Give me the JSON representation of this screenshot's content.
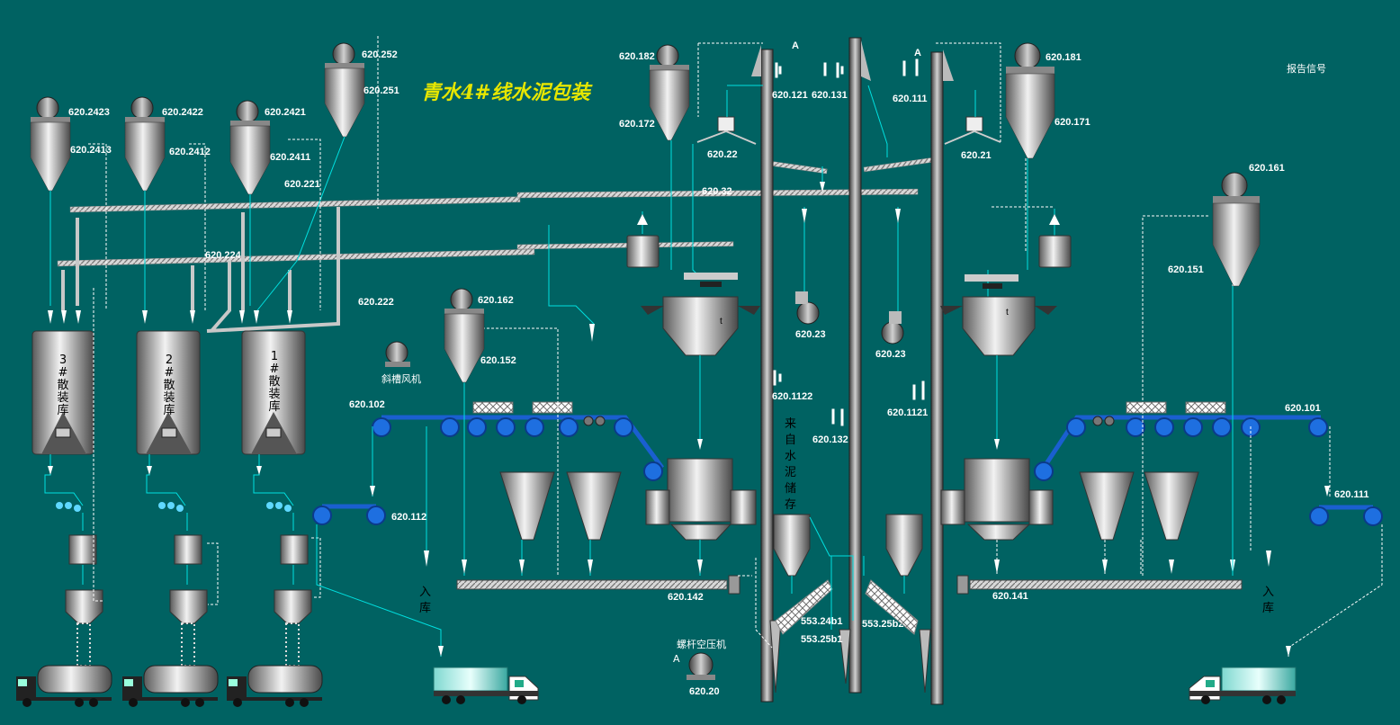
{
  "title": "青水4#线水泥包装",
  "legend_label": "报告信号",
  "silo_labels": [
    [
      "3",
      "#",
      "散",
      "装",
      "库"
    ],
    [
      "2",
      "#",
      "散",
      "装",
      "库"
    ],
    [
      "1",
      "#",
      "散",
      "装",
      "库"
    ]
  ],
  "vertical_text": [
    "来",
    "自",
    "水",
    "泥",
    "储",
    "存"
  ],
  "inbound_label": [
    "入",
    "库"
  ],
  "fan_label": "斜槽风机",
  "compressor_label": "螺杆空压机",
  "marker_a": "A",
  "tags": {
    "t620_2423": "620.2423",
    "t620_2422": "620.2422",
    "t620_2421": "620.2421",
    "t620_2413": "620.2413",
    "t620_2412": "620.2412",
    "t620_2411": "620.2411",
    "t620_252": "620.252",
    "t620_251": "620.251",
    "t620_221": "620.221",
    "t620_224": "620.224",
    "t620_222": "620.222",
    "t620_182": "620.182",
    "t620_172": "620.172",
    "t620_181": "620.181",
    "t620_171": "620.171",
    "t620_121": "620.121",
    "t620_131": "620.131",
    "t620_111": "620.111",
    "t620_22": "620.22",
    "t620_21": "620.21",
    "t620_32": "620.32",
    "t620_23a": "620.23",
    "t620_23b": "620.23",
    "t620_162": "620.162",
    "t620_152": "620.152",
    "t620_161": "620.161",
    "t620_151": "620.151",
    "t620_1122": "620.1122",
    "t620_1121": "620.1121",
    "t620_132": "620.132",
    "t620_102": "620.102",
    "t620_101": "620.101",
    "t620_112": "620.112",
    "t620_111b": "620.111",
    "t620_142": "620.142",
    "t620_141": "620.141",
    "t553_24b1": "553.24b1",
    "t553_25b1": "553.25b1",
    "t553_25b2": "553.25b2",
    "t620_20": "620.20"
  },
  "colors": {
    "background": "#006262",
    "signal_line": "#00e0e0",
    "belt": "#1a5fd0",
    "title": "#e6e600"
  }
}
